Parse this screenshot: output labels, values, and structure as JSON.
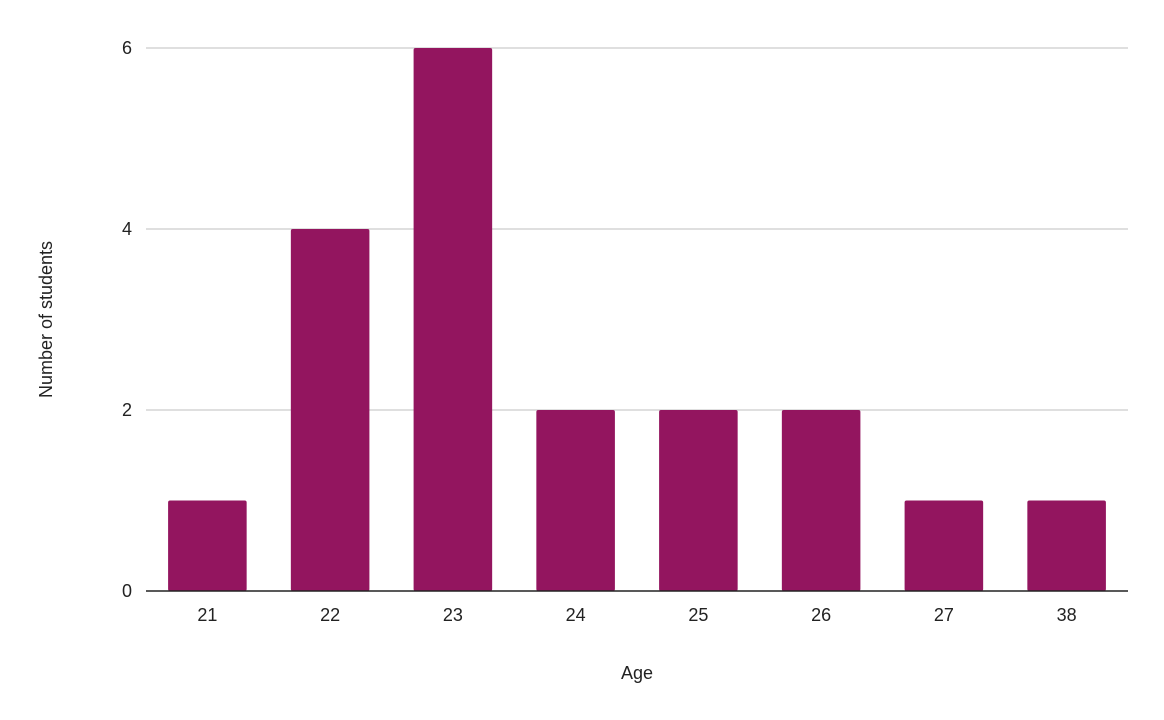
{
  "chart_data": {
    "type": "bar",
    "categories": [
      "21",
      "22",
      "23",
      "24",
      "25",
      "26",
      "27",
      "38"
    ],
    "values": [
      1,
      4,
      6,
      2,
      2,
      2,
      1,
      1
    ],
    "xlabel": "Age",
    "ylabel": "Number of students",
    "ylim": [
      0,
      6
    ],
    "yticks": [
      0,
      2,
      4,
      6
    ],
    "grid": true,
    "legend": "none",
    "bar_color": "#93155f",
    "grid_color": "#cccccc",
    "axis_color": "#222222"
  }
}
